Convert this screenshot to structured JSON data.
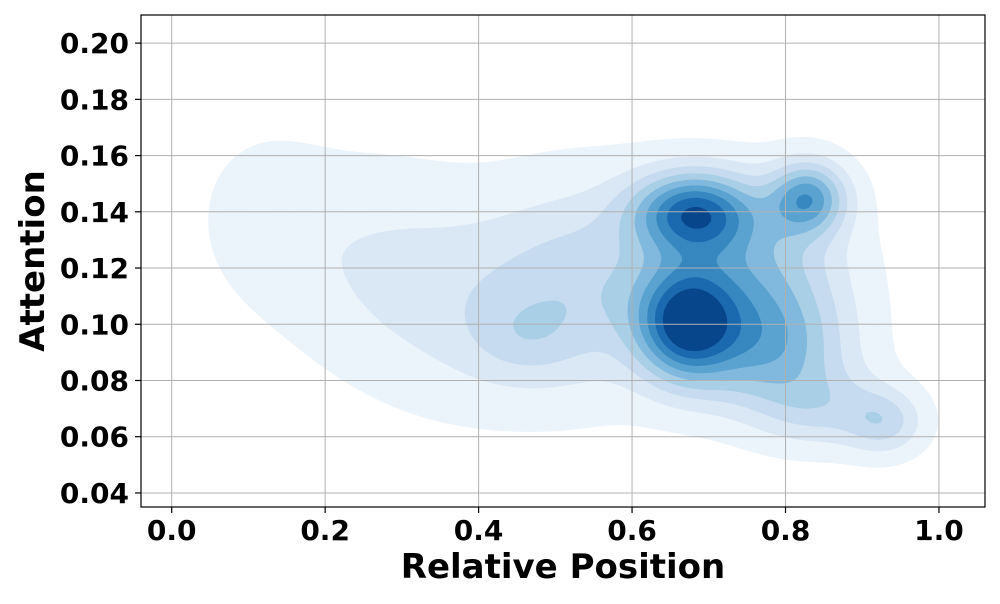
{
  "chart_data": {
    "type": "kde-density-contour",
    "xlabel": "Relative Position",
    "ylabel": "Attention",
    "xlim": [
      -0.04,
      1.06
    ],
    "ylim": [
      0.035,
      0.21
    ],
    "xticks": [
      0.0,
      0.2,
      0.4,
      0.6,
      0.8,
      1.0
    ],
    "xtick_labels": [
      "0.0",
      "0.2",
      "0.4",
      "0.6",
      "0.8",
      "1.0"
    ],
    "yticks": [
      0.04,
      0.06,
      0.08,
      0.1,
      0.12,
      0.14,
      0.16,
      0.18,
      0.2
    ],
    "ytick_labels": [
      "0.04",
      "0.06",
      "0.08",
      "0.10",
      "0.12",
      "0.14",
      "0.16",
      "0.18",
      "0.20"
    ],
    "grid": true,
    "colormap": "Blues",
    "levels": 9,
    "level_colors": [
      "#ebf3fb",
      "#dae8f5",
      "#c6dbef",
      "#a8cfe5",
      "#80b9dd",
      "#5aa2cf",
      "#3787c0",
      "#1b69af",
      "#08468b"
    ],
    "density_components": [
      {
        "x": 0.67,
        "y": 0.1,
        "sx": 0.045,
        "sy": 0.014,
        "w": 1.0
      },
      {
        "x": 0.68,
        "y": 0.14,
        "sx": 0.055,
        "sy": 0.01,
        "w": 0.95
      },
      {
        "x": 0.83,
        "y": 0.145,
        "sx": 0.035,
        "sy": 0.009,
        "w": 0.75
      },
      {
        "x": 0.78,
        "y": 0.09,
        "sx": 0.07,
        "sy": 0.015,
        "w": 0.55
      },
      {
        "x": 0.76,
        "y": 0.118,
        "sx": 0.08,
        "sy": 0.02,
        "w": 0.55
      },
      {
        "x": 0.55,
        "y": 0.115,
        "sx": 0.09,
        "sy": 0.025,
        "w": 0.35
      },
      {
        "x": 0.4,
        "y": 0.105,
        "sx": 0.11,
        "sy": 0.025,
        "w": 0.22
      },
      {
        "x": 0.25,
        "y": 0.125,
        "sx": 0.1,
        "sy": 0.025,
        "w": 0.15
      },
      {
        "x": 0.12,
        "y": 0.14,
        "sx": 0.06,
        "sy": 0.02,
        "w": 0.1
      },
      {
        "x": 0.93,
        "y": 0.065,
        "sx": 0.035,
        "sy": 0.008,
        "w": 0.35
      },
      {
        "x": 0.85,
        "y": 0.07,
        "sx": 0.06,
        "sy": 0.01,
        "w": 0.3
      },
      {
        "x": 0.46,
        "y": 0.095,
        "sx": 0.05,
        "sy": 0.01,
        "w": 0.15
      }
    ]
  }
}
